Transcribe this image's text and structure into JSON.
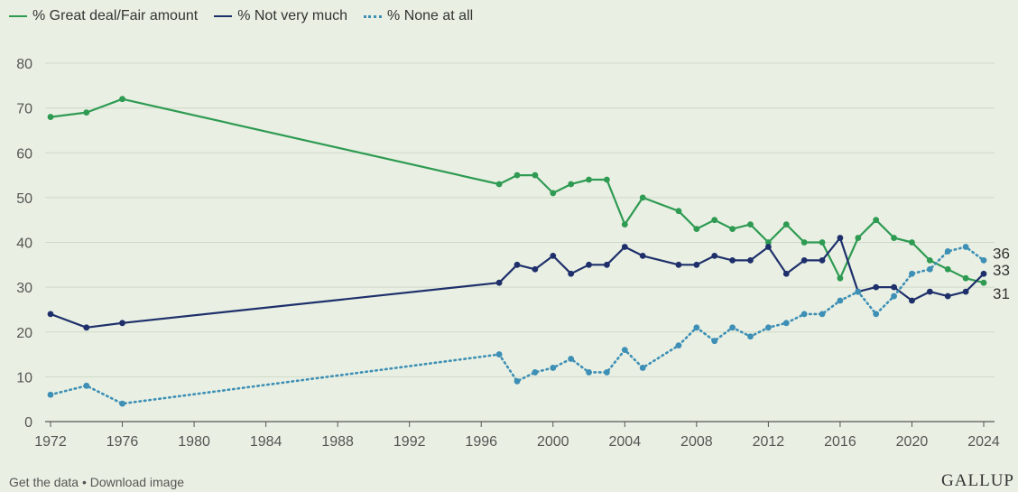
{
  "legend": {
    "great": "% Great deal/Fair amount",
    "notmuch": "% Not very much",
    "none": "% None at all"
  },
  "footer": {
    "get_data": "Get the data",
    "separator": "•",
    "download": "Download image",
    "brand": "GALLUP"
  },
  "chart_data": {
    "type": "line",
    "title": "",
    "xlabel": "",
    "ylabel": "",
    "xlim": [
      1972,
      2024
    ],
    "ylim": [
      0,
      80
    ],
    "grid": true,
    "legend_position": "top-left",
    "x_ticks": [
      1972,
      1976,
      1980,
      1984,
      1988,
      1992,
      1996,
      2000,
      2004,
      2008,
      2012,
      2016,
      2020,
      2024
    ],
    "y_ticks": [
      0,
      10,
      20,
      30,
      40,
      50,
      60,
      70,
      80
    ],
    "x": [
      1972,
      1974,
      1976,
      1997,
      1998,
      1999,
      2000,
      2001,
      2002,
      2003,
      2004,
      2005,
      2007,
      2008,
      2009,
      2010,
      2011,
      2012,
      2013,
      2014,
      2015,
      2016,
      2017,
      2018,
      2019,
      2020,
      2021,
      2022,
      2023,
      2024
    ],
    "series": [
      {
        "key": "great",
        "name": "% Great deal/Fair amount",
        "color": "#2e9a52",
        "style": "solid",
        "values": [
          68,
          69,
          72,
          53,
          55,
          55,
          51,
          53,
          54,
          54,
          44,
          50,
          47,
          43,
          45,
          43,
          44,
          40,
          44,
          40,
          40,
          32,
          41,
          45,
          41,
          40,
          36,
          34,
          32,
          31
        ]
      },
      {
        "key": "notmuch",
        "name": "% Not very much",
        "color": "#1e2f6b",
        "style": "solid",
        "values": [
          24,
          21,
          22,
          31,
          35,
          34,
          37,
          33,
          35,
          35,
          39,
          37,
          35,
          35,
          37,
          36,
          36,
          39,
          33,
          36,
          36,
          41,
          29,
          30,
          30,
          27,
          29,
          28,
          29,
          33
        ]
      },
      {
        "key": "none",
        "name": "% None at all",
        "color": "#3d8fb5",
        "style": "dotted",
        "values": [
          6,
          8,
          4,
          15,
          9,
          11,
          12,
          14,
          11,
          11,
          16,
          12,
          17,
          21,
          18,
          21,
          19,
          21,
          22,
          24,
          24,
          27,
          29,
          24,
          28,
          33,
          34,
          38,
          39,
          36
        ]
      }
    ],
    "end_labels": [
      {
        "series": "none",
        "text": "36"
      },
      {
        "series": "notmuch",
        "text": "33"
      },
      {
        "series": "great",
        "text": "31"
      }
    ]
  }
}
